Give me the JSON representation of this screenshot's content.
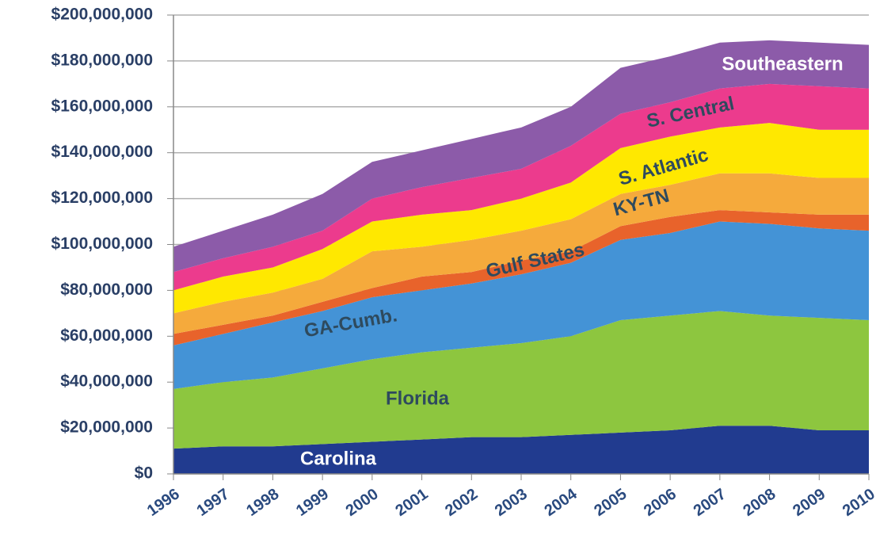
{
  "chart_data": {
    "type": "stacked_area",
    "categories": [
      "1996",
      "1997",
      "1998",
      "1999",
      "2000",
      "2001",
      "2002",
      "2003",
      "2004",
      "2005",
      "2006",
      "2007",
      "2008",
      "2009",
      "2010"
    ],
    "series": [
      {
        "name": "Carolina",
        "color": "#213b8f",
        "values": [
          11,
          12,
          12,
          13,
          14,
          15,
          16,
          16,
          17,
          18,
          19,
          21,
          21,
          19,
          19
        ]
      },
      {
        "name": "Florida",
        "color": "#8dc63f",
        "values": [
          26,
          28,
          30,
          33,
          36,
          38,
          39,
          41,
          43,
          49,
          50,
          50,
          48,
          49,
          48
        ]
      },
      {
        "name": "GA-Cumb.",
        "color": "#4493d6",
        "values": [
          19,
          21,
          24,
          25,
          27,
          27,
          28,
          30,
          32,
          35,
          36,
          39,
          40,
          39,
          39
        ]
      },
      {
        "name": "Gulf States",
        "color": "#e8632b",
        "values": [
          5,
          4,
          3,
          4,
          4,
          6,
          5,
          6,
          5,
          6,
          7,
          5,
          5,
          6,
          7
        ]
      },
      {
        "name": "KY-TN",
        "color": "#f5aa3c",
        "values": [
          9,
          10,
          10,
          10,
          16,
          13,
          14,
          13,
          14,
          14,
          14,
          16,
          17,
          16,
          16
        ]
      },
      {
        "name": "S. Atlantic",
        "color": "#ffe800",
        "values": [
          10,
          11,
          11,
          13,
          13,
          14,
          13,
          14,
          16,
          20,
          21,
          20,
          22,
          21,
          21
        ]
      },
      {
        "name": "S. Central",
        "color": "#ec3b8d",
        "values": [
          8,
          8,
          9,
          8,
          10,
          12,
          14,
          13,
          16,
          15,
          15,
          17,
          17,
          19,
          18
        ]
      },
      {
        "name": "Southeastern",
        "color": "#8c5ba9",
        "values": [
          11,
          12,
          14,
          16,
          16,
          16,
          17,
          18,
          17,
          20,
          20,
          20,
          19,
          19,
          19
        ]
      }
    ],
    "ylim": [
      0,
      200
    ],
    "yticks": [
      {
        "value": 0,
        "label": "$0"
      },
      {
        "value": 20,
        "label": "$20,000,000"
      },
      {
        "value": 40,
        "label": "$40,000,000"
      },
      {
        "value": 60,
        "label": "$60,000,000"
      },
      {
        "value": 80,
        "label": "$80,000,000"
      },
      {
        "value": 100,
        "label": "$100,000,000"
      },
      {
        "value": 120,
        "label": "$120,000,000"
      },
      {
        "value": 140,
        "label": "$140,000,000"
      },
      {
        "value": 160,
        "label": "$160,000,000"
      },
      {
        "value": 180,
        "label": "$180,000,000"
      },
      {
        "value": 200,
        "label": "$200,000,000"
      }
    ],
    "grid": true
  }
}
